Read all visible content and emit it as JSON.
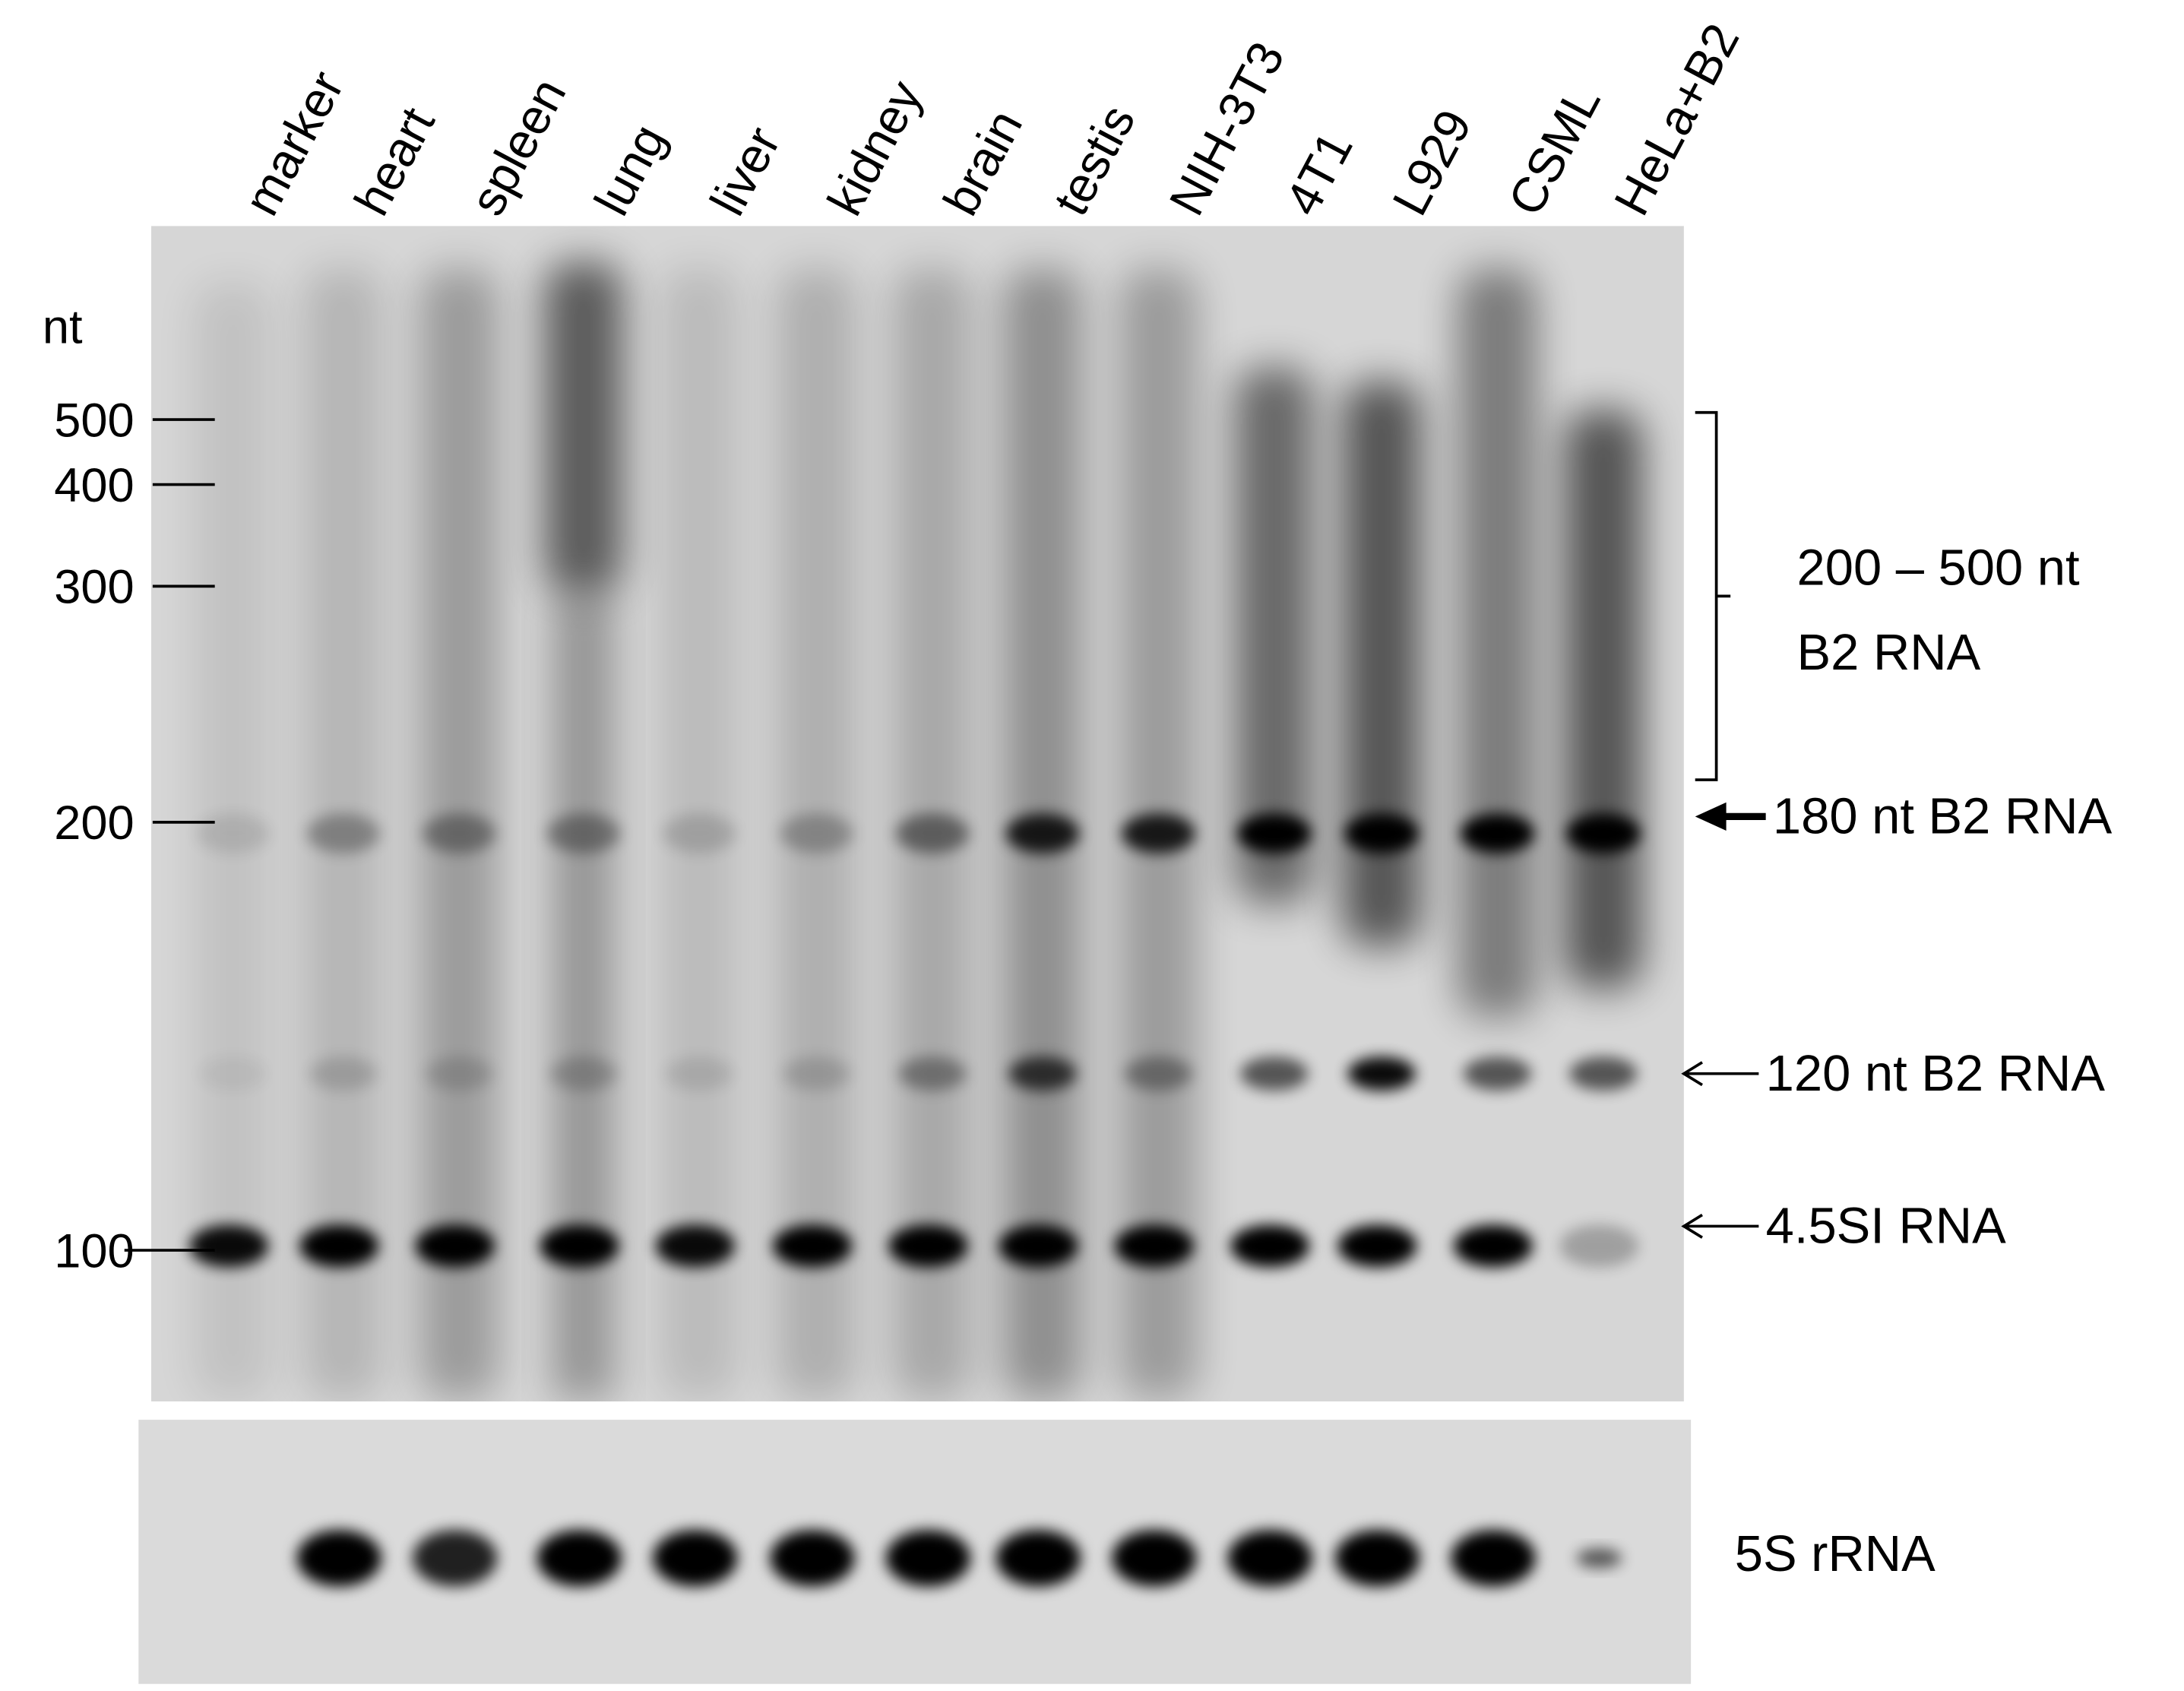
{
  "lanes": [
    "marker",
    "heart",
    "spleen",
    "lung",
    "liver",
    "kidney",
    "brain",
    "testis",
    "NIH-3T3",
    "4T1",
    "L929",
    "CSML",
    "HeLa+B2"
  ],
  "size_marker": {
    "unit": "nt",
    "labels": [
      "500",
      "400",
      "300",
      "200",
      "100"
    ]
  },
  "annotations": {
    "bracket_line1": "200 – 500 nt",
    "bracket_line2": "B2 RNA",
    "band_180": "180 nt B2 RNA",
    "band_120": "120 nt B2 RNA",
    "band_45": "4.5SI RNA",
    "loading_control": "5S rRNA"
  }
}
